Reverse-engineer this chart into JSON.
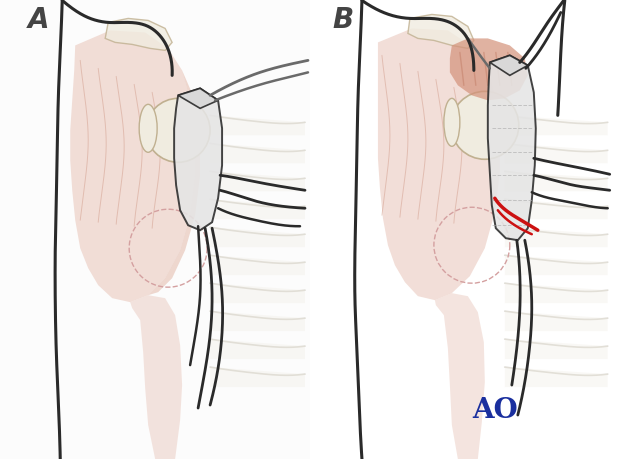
{
  "background_color": "#ffffff",
  "label_A": "A",
  "label_B": "B",
  "ao_text": "AO",
  "ao_color": "#1a2f9e",
  "skin_color": "#e8c4b8",
  "skin_color_light": "#f0d8d0",
  "muscle_color": "#d4927a",
  "muscle_color_medium": "#c4806a",
  "bone_color": "#f0ece0",
  "bone_outline": "#c0b090",
  "line_color_dark": "#2a2a2a",
  "line_color_gray": "#6a6a6a",
  "line_color_lightgray": "#aaaaaa",
  "red_color": "#cc1111",
  "dashed_color": "#d4a0a0",
  "rib_color": "#e8e4d8",
  "rib_outline": "#c8c4b8"
}
